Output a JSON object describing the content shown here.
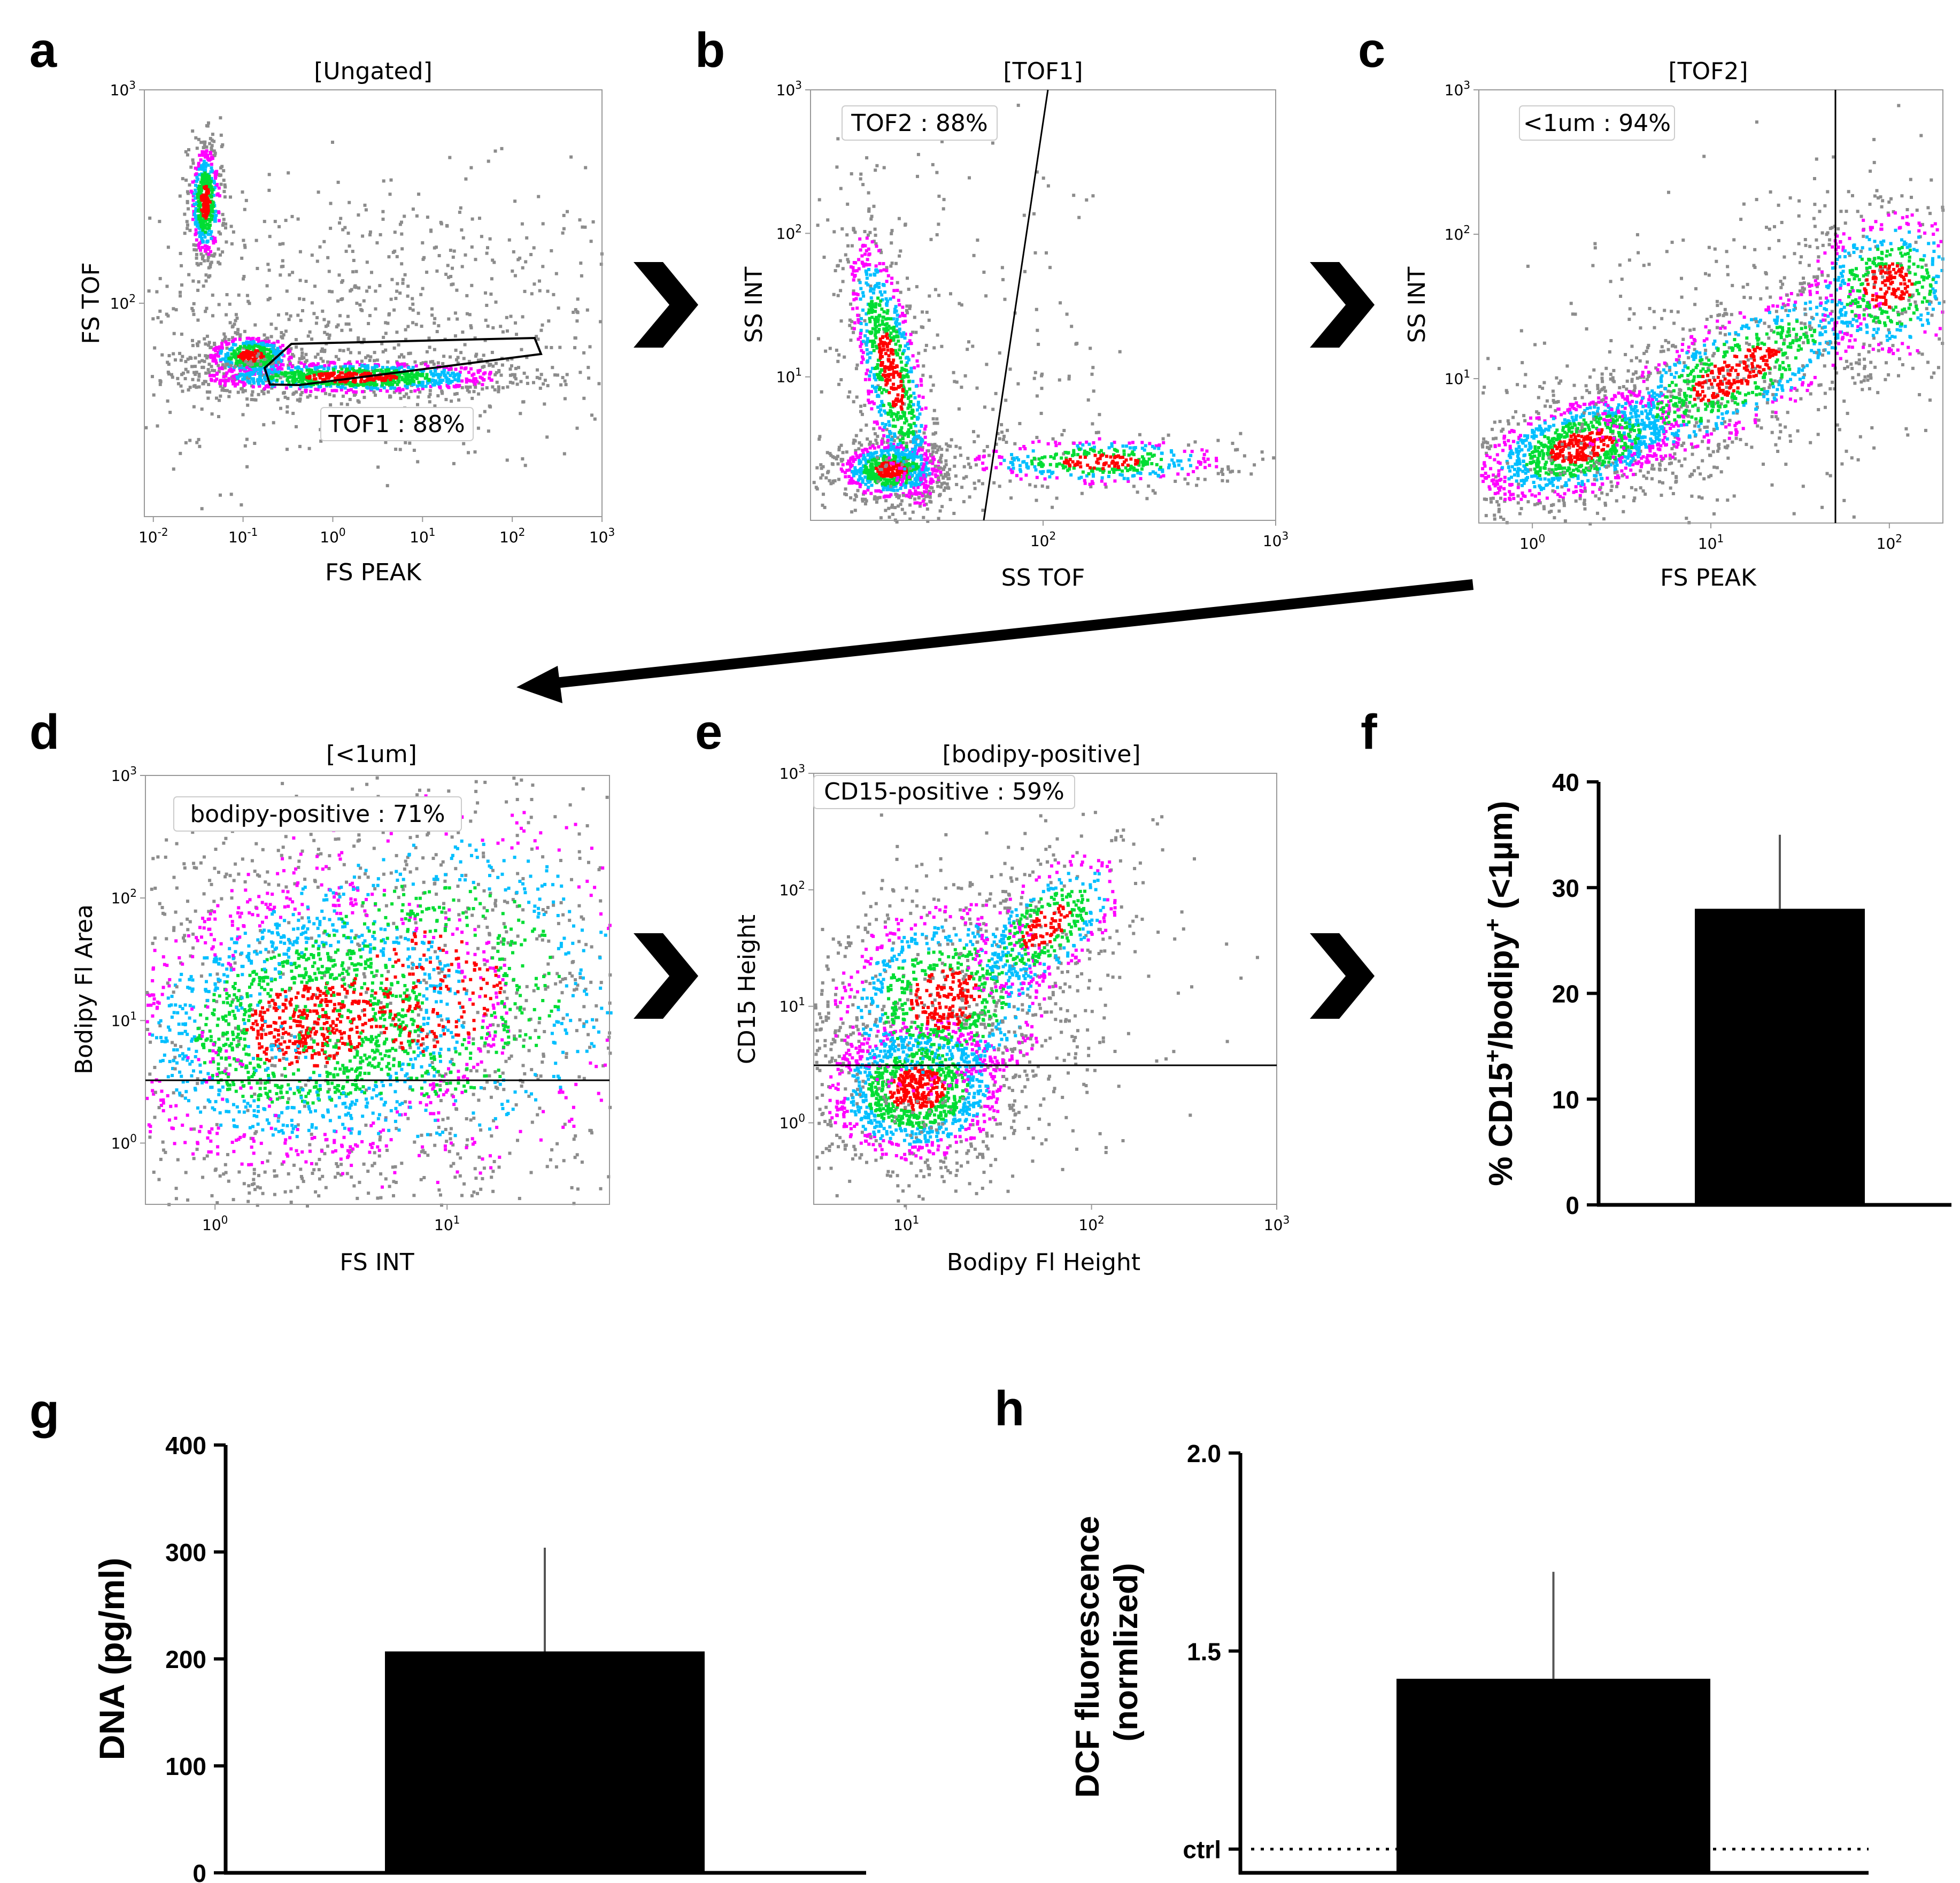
{
  "figure": {
    "panel_labels": [
      "a",
      "b",
      "c",
      "d",
      "e",
      "f",
      "g",
      "h"
    ]
  },
  "flow_panels": [
    {
      "id": "a",
      "title": "[Ungated]",
      "xlabel": "FS PEAK",
      "ylabel": "FS TOF",
      "gate_label": "TOF1 : 88%",
      "x_ticks": [
        {
          "exp": -2,
          "label": "10",
          "sup": "-2"
        },
        {
          "exp": -1,
          "label": "10",
          "sup": "-1"
        },
        {
          "exp": 0,
          "label": "10",
          "sup": "0"
        },
        {
          "exp": 1,
          "label": "10",
          "sup": "1"
        },
        {
          "exp": 2,
          "label": "10",
          "sup": "2"
        },
        {
          "exp": 3,
          "label": "10",
          "sup": "3"
        }
      ],
      "y_ticks": [
        {
          "exp": 2,
          "label": "10",
          "sup": "2"
        },
        {
          "exp": 3,
          "label": "10",
          "sup": "3"
        }
      ],
      "x_range_log": [
        -2.1,
        3.0
      ],
      "y_range_log": [
        1.0,
        3.0
      ]
    },
    {
      "id": "b",
      "title": "[TOF1]",
      "xlabel": "SS TOF",
      "ylabel": "SS INT",
      "gate_label": "TOF2 : 88%",
      "x_ticks": [
        {
          "exp": 2,
          "label": "10",
          "sup": "2"
        },
        {
          "exp": 3,
          "label": "10",
          "sup": "3"
        }
      ],
      "y_ticks": [
        {
          "exp": 1,
          "label": "10",
          "sup": "1"
        },
        {
          "exp": 2,
          "label": "10",
          "sup": "2"
        },
        {
          "exp": 3,
          "label": "10",
          "sup": "3"
        }
      ],
      "x_range_log": [
        1.0,
        3.0
      ],
      "y_range_log": [
        0.0,
        3.0
      ]
    },
    {
      "id": "c",
      "title": "[TOF2]",
      "xlabel": "FS PEAK",
      "ylabel": "SS INT",
      "gate_label": "<1um : 94%",
      "x_ticks": [
        {
          "exp": 0,
          "label": "10",
          "sup": "0"
        },
        {
          "exp": 1,
          "label": "10",
          "sup": "1"
        },
        {
          "exp": 2,
          "label": "10",
          "sup": "2"
        }
      ],
      "y_ticks": [
        {
          "exp": 1,
          "label": "10",
          "sup": "1"
        },
        {
          "exp": 2,
          "label": "10",
          "sup": "2"
        },
        {
          "exp": 3,
          "label": "10",
          "sup": "3"
        }
      ],
      "x_range_log": [
        -0.3,
        2.3
      ],
      "y_range_log": [
        0.0,
        3.0
      ]
    },
    {
      "id": "d",
      "title": "[<1um]",
      "xlabel": "FS INT",
      "ylabel": "Bodipy Fl Area",
      "gate_label": "bodipy-positive : 71%",
      "x_ticks": [
        {
          "exp": 0,
          "label": "10",
          "sup": "0"
        },
        {
          "exp": 1,
          "label": "10",
          "sup": "1"
        }
      ],
      "y_ticks": [
        {
          "exp": 0,
          "label": "10",
          "sup": "0"
        },
        {
          "exp": 1,
          "label": "10",
          "sup": "1"
        },
        {
          "exp": 2,
          "label": "10",
          "sup": "2"
        },
        {
          "exp": 3,
          "label": "10",
          "sup": "3"
        }
      ],
      "x_range_log": [
        -0.3,
        1.7
      ],
      "y_range_log": [
        -0.5,
        3.0
      ]
    },
    {
      "id": "e",
      "title": "[bodipy-positive]",
      "xlabel": "Bodipy Fl Height",
      "ylabel": "CD15 Height",
      "gate_label": "CD15-positive : 59%",
      "x_ticks": [
        {
          "exp": 1,
          "label": "10",
          "sup": "1"
        },
        {
          "exp": 2,
          "label": "10",
          "sup": "2"
        },
        {
          "exp": 3,
          "label": "10",
          "sup": "3"
        }
      ],
      "y_ticks": [
        {
          "exp": 0,
          "label": "10",
          "sup": "0"
        },
        {
          "exp": 1,
          "label": "10",
          "sup": "1"
        },
        {
          "exp": 2,
          "label": "10",
          "sup": "2"
        },
        {
          "exp": 3,
          "label": "10",
          "sup": "3"
        }
      ],
      "x_range_log": [
        0.5,
        3.0
      ],
      "y_range_log": [
        -0.7,
        3.0
      ]
    }
  ],
  "chart_data": [
    {
      "id": "f",
      "type": "bar",
      "categories": [
        ""
      ],
      "values": [
        28
      ],
      "error": [
        7
      ],
      "title": "",
      "xlabel": "",
      "ylabel": "% CD15+/bodipy+ (<1µm)",
      "ylabel_parts": [
        "% CD15",
        "+",
        "/bodipy",
        "+",
        " (<1µm)"
      ],
      "ylim": [
        0,
        40
      ],
      "yticks": [
        0,
        10,
        20,
        30,
        40
      ]
    },
    {
      "id": "g",
      "type": "bar",
      "categories": [
        ""
      ],
      "values": [
        207
      ],
      "error": [
        97
      ],
      "title": "",
      "xlabel": "",
      "ylabel": "DNA (pg/ml)",
      "ylim": [
        0,
        400
      ],
      "yticks": [
        0,
        100,
        200,
        300,
        400
      ]
    },
    {
      "id": "h",
      "type": "bar",
      "categories": [
        ""
      ],
      "values": [
        1.43
      ],
      "error": [
        0.27
      ],
      "title": "",
      "xlabel": "",
      "ylabel": "DCF fluorescence (normlized)",
      "ylabel_lines": [
        "DCF fluorescence",
        "(normlized)"
      ],
      "ylim": [
        0.94,
        2.0
      ],
      "yticks": [
        1.5,
        2.0
      ],
      "ytick_labels": [
        "1.5",
        "2.0"
      ],
      "reference": {
        "label": "ctrl",
        "value": 1.0
      }
    }
  ],
  "colors": {
    "density_low": "#8c8c8c",
    "density_mid1": "#ff00ff",
    "density_mid2": "#00bfff",
    "density_mid3": "#00dd33",
    "density_high": "#ff0000",
    "bar_fill": "#000000",
    "axis": "#000000"
  }
}
